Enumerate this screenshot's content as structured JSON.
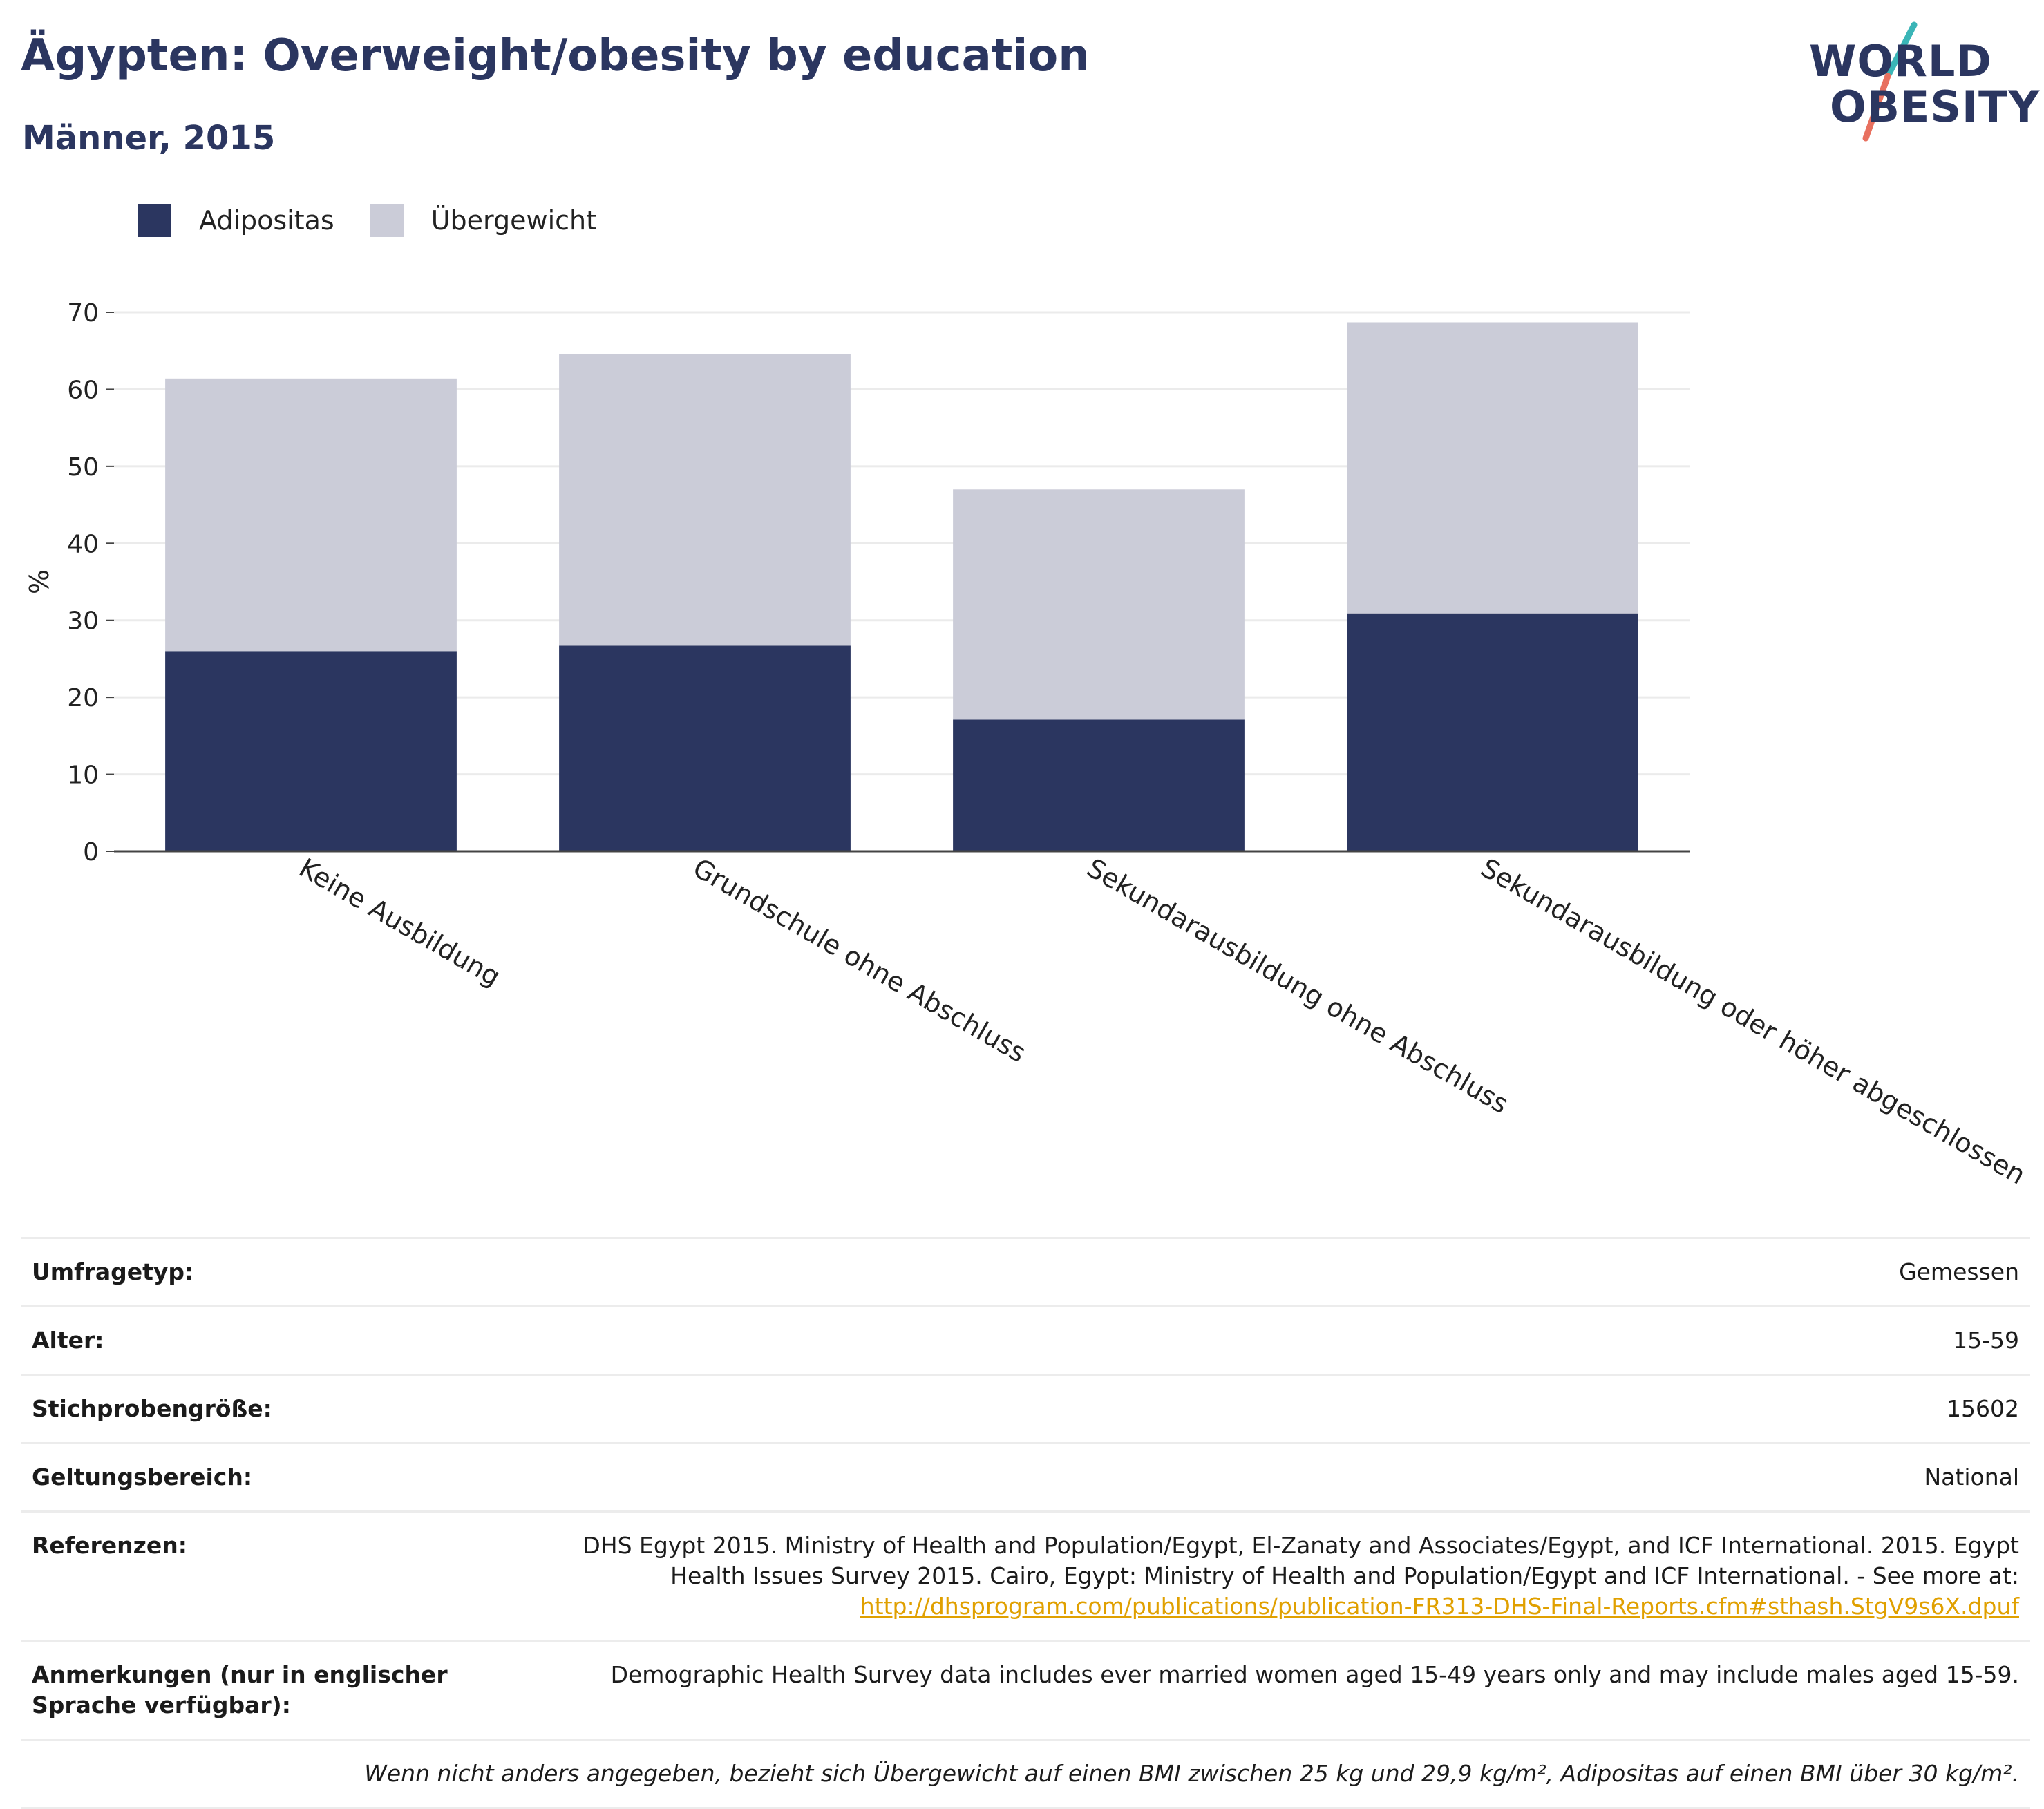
{
  "header": {
    "title": "Ägypten: Overweight/obesity by education",
    "subtitle": "Männer, 2015",
    "logo_line1": "WORLD",
    "logo_line2": "OBESITY"
  },
  "colors": {
    "obesity": "#2b3660",
    "overweight": "#cbccd8",
    "logo_teal": "#3ab5b7",
    "logo_coral": "#e8705f",
    "link": "#e0a000"
  },
  "chart_data": {
    "type": "bar",
    "stacked": true,
    "categories": [
      "Keine Ausbildung",
      "Grundschule ohne Abschluss",
      "Sekundarausbildung ohne Abschluss",
      "Sekundarausbildung oder höher abgeschlossen"
    ],
    "series": [
      {
        "name": "Adipositas",
        "values": [
          26.0,
          26.7,
          17.1,
          30.9
        ]
      },
      {
        "name": "Übergewicht",
        "values": [
          35.4,
          37.9,
          29.9,
          37.8
        ]
      }
    ],
    "ylabel": "%",
    "ylim": [
      0,
      70
    ],
    "yticks": [
      0,
      10,
      20,
      30,
      40,
      50,
      60,
      70
    ],
    "grid": true,
    "legend_position": "top-left"
  },
  "metadata": {
    "rows": [
      {
        "label": "Umfragetyp:",
        "value": "Gemessen"
      },
      {
        "label": "Alter:",
        "value": "15-59"
      },
      {
        "label": "Stichprobengröße:",
        "value": "15602"
      },
      {
        "label": "Geltungsbereich:",
        "value": "National"
      }
    ],
    "references_label": "Referenzen:",
    "references_text": "DHS Egypt 2015. Ministry of Health and Population/Egypt, El-Zanaty and Associates/Egypt, and ICF International. 2015. Egypt Health Issues Survey 2015. Cairo, Egypt: Ministry of Health and Population/Egypt and ICF International. - See more at:",
    "references_link": "http://dhsprogram.com/publications/publication-FR313-DHS-Final-Reports.cfm#sthash.StgV9s6X.dpuf",
    "notes_label": "Anmerkungen (nur in englischer Sprache verfügbar):",
    "notes_text": "Demographic Health Survey data includes ever married women aged 15-49 years only and may include males aged 15-59.",
    "footnote": "Wenn nicht anders angegeben, bezieht sich Übergewicht auf einen BMI zwischen 25 kg und 29,9 kg/m², Adipositas auf einen BMI über 30 kg/m²."
  }
}
